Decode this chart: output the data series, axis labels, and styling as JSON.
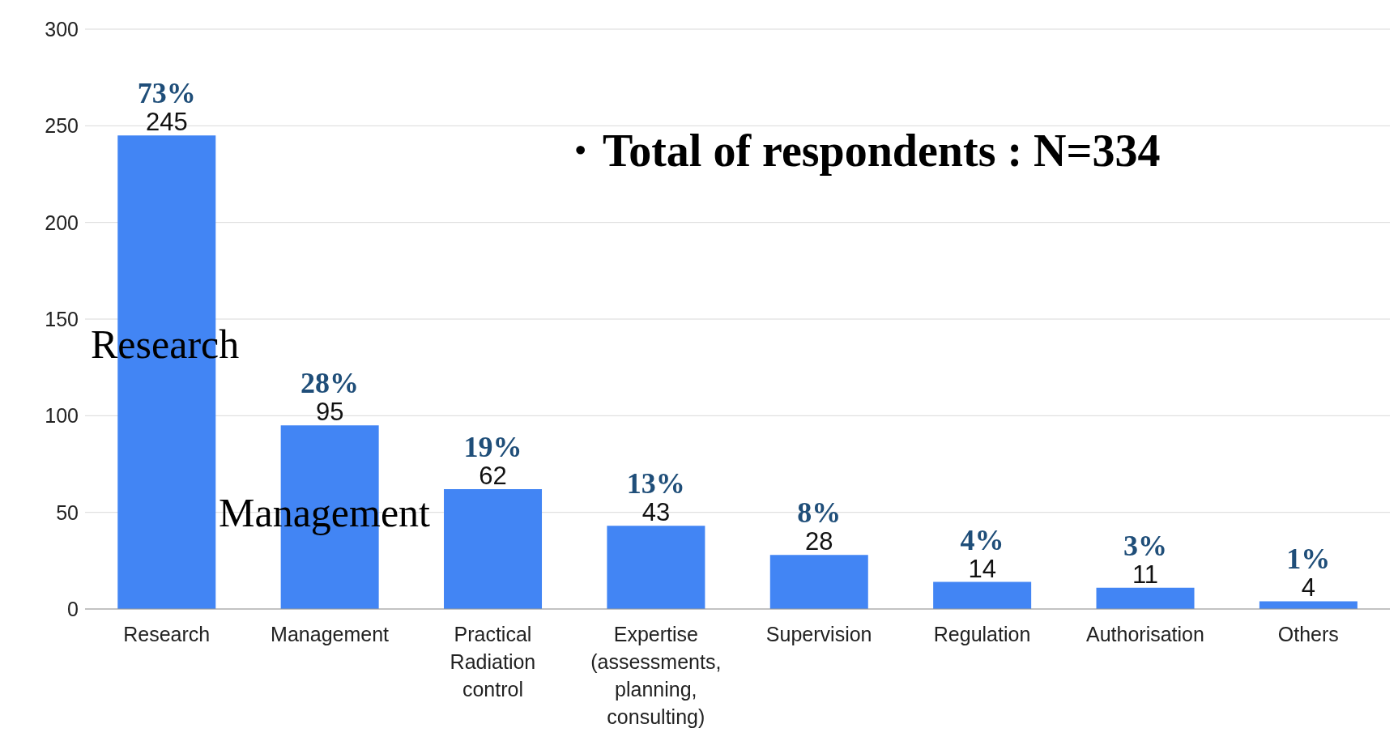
{
  "chart_data": {
    "type": "bar",
    "categories": [
      "Research",
      "Management",
      "Practical Radiation control",
      "Expertise (assessments, planning, consulting)",
      "Supervision",
      "Regulation",
      "Authorisation",
      "Others"
    ],
    "values": [
      245,
      95,
      62,
      43,
      28,
      14,
      11,
      4
    ],
    "color": "#4285f4",
    "ylim": [
      0,
      300
    ],
    "yticks": [
      0,
      50,
      100,
      150,
      200,
      250,
      300
    ],
    "grid": "y",
    "data_labels": true,
    "annotations": [
      "・Total of respondents : N=334",
      "Research",
      "Management",
      {
        "text": "73%",
        "x": "Research",
        "y": 245
      },
      {
        "text": "28%",
        "x": "Management",
        "y": 95
      },
      {
        "text": "19%",
        "x": "Practical Radiation control",
        "y": 62
      },
      {
        "text": "13%",
        "x": "Expertise (assessments, planning, consulting)",
        "y": 43
      },
      {
        "text": "8%",
        "x": "Supervision",
        "y": 28
      },
      {
        "text": "4%",
        "x": "Regulation",
        "y": 14
      },
      {
        "text": "3%",
        "x": "Authorisation",
        "y": 11
      },
      {
        "text": "1%",
        "x": "Others",
        "y": 4
      }
    ]
  }
}
